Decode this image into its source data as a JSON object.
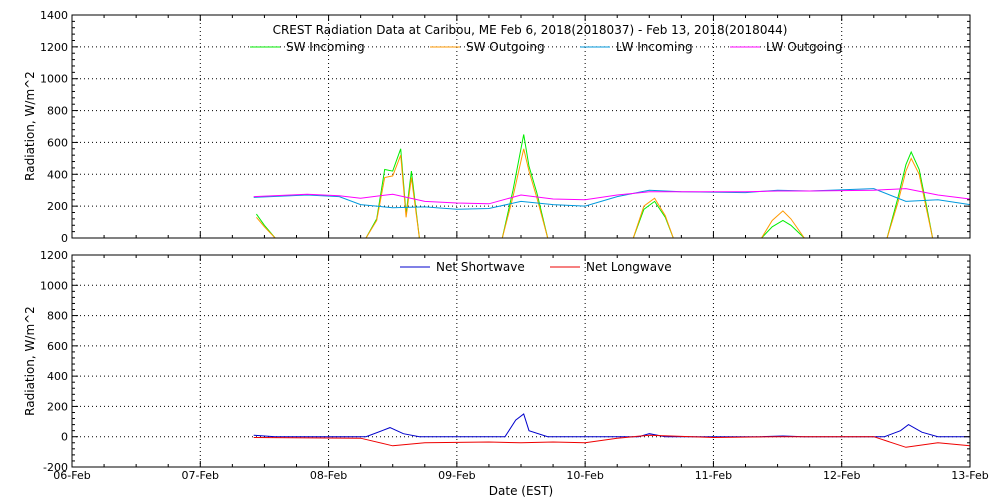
{
  "chart_data": [
    {
      "type": "line",
      "title": "CREST Radiation Data at Caribou, ME   Feb  6, 2018(2018037) - Feb 13, 2018(2018044)",
      "ylabel": "Radiation, W/m^2",
      "xlabel": "",
      "ylim": [
        0,
        1400
      ],
      "yticks": [
        0,
        200,
        400,
        600,
        800,
        1000,
        1200,
        1400
      ],
      "xlim": [
        "2018-02-06",
        "2018-02-13"
      ],
      "grid": true,
      "legend": "top",
      "series": [
        {
          "name": "SW Incoming",
          "color": "#00ee00",
          "points": [
            [
              "2018-02-07T10:30",
              150
            ],
            [
              "2018-02-07T12:00",
              80
            ],
            [
              "2018-02-07T14:00",
              0
            ],
            [
              "2018-02-08T07:00",
              0
            ],
            [
              "2018-02-08T09:00",
              120
            ],
            [
              "2018-02-08T10:30",
              430
            ],
            [
              "2018-02-08T12:00",
              420
            ],
            [
              "2018-02-08T13:30",
              560
            ],
            [
              "2018-02-08T14:30",
              150
            ],
            [
              "2018-02-08T15:30",
              420
            ],
            [
              "2018-02-08T17:00",
              0
            ],
            [
              "2018-02-09T08:30",
              0
            ],
            [
              "2018-02-09T10:30",
              300
            ],
            [
              "2018-02-09T12:30",
              650
            ],
            [
              "2018-02-09T13:30",
              450
            ],
            [
              "2018-02-09T15:00",
              280
            ],
            [
              "2018-02-09T17:00",
              0
            ],
            [
              "2018-02-10T09:00",
              0
            ],
            [
              "2018-02-10T11:00",
              180
            ],
            [
              "2018-02-10T13:00",
              230
            ],
            [
              "2018-02-10T15:00",
              130
            ],
            [
              "2018-02-10T16:30",
              0
            ],
            [
              "2018-02-11T09:00",
              0
            ],
            [
              "2018-02-11T11:00",
              70
            ],
            [
              "2018-02-11T13:00",
              110
            ],
            [
              "2018-02-11T14:30",
              80
            ],
            [
              "2018-02-11T17:00",
              0
            ],
            [
              "2018-02-12T08:30",
              0
            ],
            [
              "2018-02-12T10:30",
              250
            ],
            [
              "2018-02-12T12:00",
              460
            ],
            [
              "2018-02-12T13:00",
              540
            ],
            [
              "2018-02-12T14:30",
              430
            ],
            [
              "2018-02-12T16:00",
              180
            ],
            [
              "2018-02-12T17:00",
              0
            ]
          ]
        },
        {
          "name": "SW Outgoing",
          "color": "#ff9900",
          "points": [
            [
              "2018-02-07T10:30",
              130
            ],
            [
              "2018-02-07T12:00",
              70
            ],
            [
              "2018-02-07T14:00",
              0
            ],
            [
              "2018-02-08T07:00",
              0
            ],
            [
              "2018-02-08T09:00",
              110
            ],
            [
              "2018-02-08T10:30",
              380
            ],
            [
              "2018-02-08T12:00",
              390
            ],
            [
              "2018-02-08T13:30",
              520
            ],
            [
              "2018-02-08T14:30",
              130
            ],
            [
              "2018-02-08T15:30",
              380
            ],
            [
              "2018-02-08T17:00",
              0
            ],
            [
              "2018-02-09T08:30",
              0
            ],
            [
              "2018-02-09T10:30",
              260
            ],
            [
              "2018-02-09T12:30",
              560
            ],
            [
              "2018-02-09T13:30",
              420
            ],
            [
              "2018-02-09T15:00",
              250
            ],
            [
              "2018-02-09T17:00",
              0
            ],
            [
              "2018-02-10T09:00",
              0
            ],
            [
              "2018-02-10T11:00",
              200
            ],
            [
              "2018-02-10T13:00",
              250
            ],
            [
              "2018-02-10T15:00",
              140
            ],
            [
              "2018-02-10T16:30",
              0
            ],
            [
              "2018-02-11T09:00",
              0
            ],
            [
              "2018-02-11T11:00",
              110
            ],
            [
              "2018-02-11T13:00",
              170
            ],
            [
              "2018-02-11T14:30",
              120
            ],
            [
              "2018-02-11T17:00",
              0
            ],
            [
              "2018-02-12T08:30",
              0
            ],
            [
              "2018-02-12T10:30",
              220
            ],
            [
              "2018-02-12T12:00",
              420
            ],
            [
              "2018-02-12T13:00",
              500
            ],
            [
              "2018-02-12T14:30",
              400
            ],
            [
              "2018-02-12T16:00",
              160
            ],
            [
              "2018-02-12T17:00",
              0
            ]
          ]
        },
        {
          "name": "LW Incoming",
          "color": "#0099dd",
          "points": [
            [
              "2018-02-07T10:00",
              255
            ],
            [
              "2018-02-07T20:00",
              270
            ],
            [
              "2018-02-08T02:00",
              260
            ],
            [
              "2018-02-08T06:00",
              210
            ],
            [
              "2018-02-08T12:00",
              190
            ],
            [
              "2018-02-08T18:00",
              195
            ],
            [
              "2018-02-09T00:00",
              180
            ],
            [
              "2018-02-09T06:00",
              185
            ],
            [
              "2018-02-09T12:00",
              230
            ],
            [
              "2018-02-09T18:00",
              210
            ],
            [
              "2018-02-10T00:00",
              200
            ],
            [
              "2018-02-10T06:00",
              260
            ],
            [
              "2018-02-10T12:00",
              300
            ],
            [
              "2018-02-10T18:00",
              290
            ],
            [
              "2018-02-11T06:00",
              285
            ],
            [
              "2018-02-11T12:00",
              300
            ],
            [
              "2018-02-11T18:00",
              295
            ],
            [
              "2018-02-12T06:00",
              310
            ],
            [
              "2018-02-12T12:00",
              230
            ],
            [
              "2018-02-12T18:00",
              240
            ],
            [
              "2018-02-13T00:00",
              210
            ]
          ]
        },
        {
          "name": "LW Outgoing",
          "color": "#ff00ff",
          "points": [
            [
              "2018-02-07T10:00",
              260
            ],
            [
              "2018-02-07T20:00",
              275
            ],
            [
              "2018-02-08T02:00",
              265
            ],
            [
              "2018-02-08T06:00",
              250
            ],
            [
              "2018-02-08T12:00",
              275
            ],
            [
              "2018-02-08T18:00",
              230
            ],
            [
              "2018-02-09T00:00",
              220
            ],
            [
              "2018-02-09T06:00",
              215
            ],
            [
              "2018-02-09T12:00",
              270
            ],
            [
              "2018-02-09T18:00",
              245
            ],
            [
              "2018-02-10T00:00",
              240
            ],
            [
              "2018-02-10T06:00",
              270
            ],
            [
              "2018-02-10T12:00",
              290
            ],
            [
              "2018-02-10T18:00",
              290
            ],
            [
              "2018-02-11T06:00",
              290
            ],
            [
              "2018-02-11T12:00",
              295
            ],
            [
              "2018-02-11T18:00",
              295
            ],
            [
              "2018-02-12T06:00",
              300
            ],
            [
              "2018-02-12T12:00",
              310
            ],
            [
              "2018-02-12T18:00",
              270
            ],
            [
              "2018-02-13T00:00",
              245
            ]
          ]
        }
      ]
    },
    {
      "type": "line",
      "ylabel": "Radiation, W/m^2",
      "xlabel": "Date (EST)",
      "ylim": [
        -200,
        1200
      ],
      "yticks": [
        -200,
        0,
        200,
        400,
        600,
        800,
        1000,
        1200
      ],
      "xlim": [
        "2018-02-06",
        "2018-02-13"
      ],
      "xticks": [
        "06-Feb",
        "07-Feb",
        "08-Feb",
        "09-Feb",
        "10-Feb",
        "11-Feb",
        "12-Feb",
        "13-Feb"
      ],
      "grid": true,
      "legend": "top",
      "series": [
        {
          "name": "Net Shortwave",
          "color": "#0000cc",
          "points": [
            [
              "2018-02-07T10:00",
              10
            ],
            [
              "2018-02-07T14:00",
              0
            ],
            [
              "2018-02-08T07:00",
              0
            ],
            [
              "2018-02-08T10:00",
              40
            ],
            [
              "2018-02-08T11:30",
              60
            ],
            [
              "2018-02-08T14:00",
              20
            ],
            [
              "2018-02-08T17:00",
              0
            ],
            [
              "2018-02-09T09:00",
              0
            ],
            [
              "2018-02-09T11:00",
              110
            ],
            [
              "2018-02-09T12:30",
              150
            ],
            [
              "2018-02-09T13:30",
              40
            ],
            [
              "2018-02-09T17:00",
              0
            ],
            [
              "2018-02-10T10:00",
              0
            ],
            [
              "2018-02-10T12:00",
              20
            ],
            [
              "2018-02-10T15:00",
              0
            ],
            [
              "2018-02-11T09:00",
              0
            ],
            [
              "2018-02-11T13:00",
              5
            ],
            [
              "2018-02-11T17:00",
              0
            ],
            [
              "2018-02-12T08:00",
              0
            ],
            [
              "2018-02-12T11:00",
              40
            ],
            [
              "2018-02-12T12:30",
              80
            ],
            [
              "2018-02-12T15:00",
              30
            ],
            [
              "2018-02-12T18:00",
              0
            ],
            [
              "2018-02-13T00:00",
              0
            ]
          ]
        },
        {
          "name": "Net Longwave",
          "color": "#ee0000",
          "points": [
            [
              "2018-02-07T10:00",
              -5
            ],
            [
              "2018-02-08T06:00",
              -10
            ],
            [
              "2018-02-08T12:00",
              -60
            ],
            [
              "2018-02-08T18:00",
              -40
            ],
            [
              "2018-02-09T06:00",
              -35
            ],
            [
              "2018-02-09T12:00",
              -40
            ],
            [
              "2018-02-09T18:00",
              -35
            ],
            [
              "2018-02-10T00:00",
              -40
            ],
            [
              "2018-02-10T06:00",
              -10
            ],
            [
              "2018-02-10T12:00",
              10
            ],
            [
              "2018-02-11T00:00",
              -5
            ],
            [
              "2018-02-11T12:00",
              0
            ],
            [
              "2018-02-12T06:00",
              0
            ],
            [
              "2018-02-12T12:00",
              -70
            ],
            [
              "2018-02-12T18:00",
              -40
            ],
            [
              "2018-02-13T00:00",
              -60
            ]
          ]
        }
      ]
    }
  ]
}
